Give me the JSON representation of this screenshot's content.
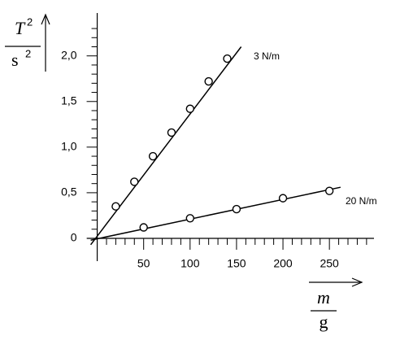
{
  "chart_data": {
    "type": "scatter",
    "ylabel": {
      "numerator": "T",
      "numerator_exp": "2",
      "denominator": "s",
      "denominator_exp": "2"
    },
    "xlabel": {
      "numerator": "m",
      "denominator": "g"
    },
    "xlim": [
      -11,
      298
    ],
    "ylim": [
      -0.25,
      2.47
    ],
    "xticks": [
      50,
      100,
      150,
      200,
      250
    ],
    "yticks": [
      0,
      {
        "value": 0.5,
        "label": "0,5"
      },
      {
        "value": 1.0,
        "label": "1,0"
      },
      {
        "value": 1.5,
        "label": "1,5"
      },
      {
        "value": 2.0,
        "label": "2,0"
      }
    ],
    "xminorticks": [
      10,
      20,
      30,
      40,
      60,
      70,
      80,
      90,
      110,
      120,
      130,
      140,
      160,
      170,
      180,
      190,
      210,
      220,
      230,
      240,
      260,
      270,
      280,
      290
    ],
    "yminorticks": [
      0.1,
      0.2,
      0.3,
      0.4,
      0.6,
      0.7,
      0.8,
      0.9,
      1.1,
      1.2,
      1.3,
      1.4,
      1.6,
      1.7,
      1.8,
      1.9,
      2.1,
      2.2,
      2.3
    ],
    "series": [
      {
        "name": "3 N/m",
        "color": "#000000",
        "x": [
          20,
          40,
          60,
          80,
          100,
          120,
          140
        ],
        "values": [
          0.35,
          0.62,
          0.9,
          1.16,
          1.42,
          1.72,
          1.97
        ],
        "line": {
          "x": [
            -7,
            155
          ],
          "y": [
            -0.07,
            2.1
          ]
        }
      },
      {
        "name": "20 N/m",
        "color": "#000000",
        "x": [
          50,
          100,
          150,
          200,
          250
        ],
        "values": [
          0.12,
          0.22,
          0.32,
          0.44,
          0.52
        ],
        "line": {
          "x": [
            -7,
            262
          ],
          "y": [
            -0.02,
            0.56
          ]
        }
      }
    ]
  }
}
